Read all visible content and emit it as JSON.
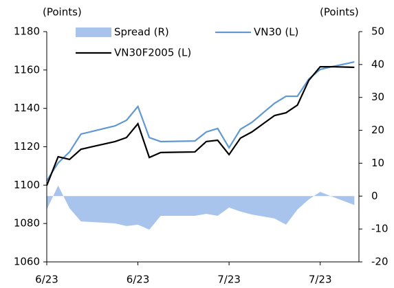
{
  "chart_data": {
    "type": "line",
    "ylabel": "(Points)",
    "y2label": "(Points)",
    "x": [
      0,
      1,
      2,
      3,
      6,
      7,
      8,
      9,
      10,
      13,
      14,
      15,
      16,
      17,
      18,
      20,
      21,
      22,
      23,
      24,
      25,
      27
    ],
    "xlim": [
      0,
      27.4
    ],
    "xticks": [
      {
        "value": 0,
        "label": "6/23"
      },
      {
        "value": 8,
        "label": "6/23"
      },
      {
        "value": 16,
        "label": "7/23"
      },
      {
        "value": 24,
        "label": "7/23"
      }
    ],
    "ylim": [
      1060,
      1180
    ],
    "yticks": [
      1060,
      1080,
      1100,
      1120,
      1140,
      1160,
      1180
    ],
    "y2lim": [
      -20,
      50
    ],
    "y2ticks": [
      -20,
      -10,
      0,
      10,
      20,
      30,
      40,
      50
    ],
    "series": [
      {
        "name": "Spread (R)",
        "type": "area",
        "axis": "y2",
        "color": "#a9c4ec",
        "values": [
          -4.1,
          3.2,
          -3.7,
          -7.7,
          -8.3,
          -9.1,
          -8.7,
          -10.2,
          -6,
          -6,
          -5.4,
          -6,
          -3.5,
          -4.7,
          -5.6,
          -6.8,
          -8.7,
          -4.1,
          -1,
          1.3,
          -0.1,
          -2.7
        ]
      },
      {
        "name": "VN30 (L)",
        "type": "line",
        "color": "#5f98d2",
        "values": [
          1102.3,
          1111.6,
          1117.3,
          1126.6,
          1130.9,
          1133.8,
          1141,
          1124.8,
          1122.7,
          1123,
          1127.7,
          1129.5,
          1119.5,
          1129.1,
          1132.7,
          1142.7,
          1146.3,
          1146.3,
          1155.3,
          1160.3,
          1161.7,
          1164.2
        ]
      },
      {
        "name": "VN30F2005 (L)",
        "type": "line",
        "color": "#000000",
        "values": [
          1099.8,
          1114.8,
          1113.4,
          1118.7,
          1122.7,
          1124.8,
          1132,
          1114.4,
          1117,
          1117.3,
          1122.7,
          1123.4,
          1115.9,
          1124.5,
          1127.7,
          1136.3,
          1137.7,
          1141.7,
          1154.6,
          1161.7,
          1161.7,
          1161.4
        ]
      }
    ]
  }
}
